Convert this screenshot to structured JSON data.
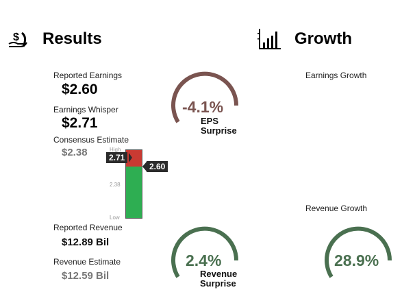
{
  "results": {
    "title": "Results",
    "icon": "money-hand-icon",
    "reported_earnings_label": "Reported Earnings",
    "reported_earnings_value": "$2.60",
    "earnings_whisper_label": "Earnings Whisper",
    "earnings_whisper_value": "$2.71",
    "consensus_label": "Consensus Estimate",
    "consensus_value": "$2.38",
    "reported_revenue_label": "Reported Revenue",
    "reported_revenue_value": "$12.89 Bil",
    "revenue_estimate_label": "Revenue Estimate",
    "revenue_estimate_value": "$12.59 Bil"
  },
  "eps_gauge": {
    "value": "-4.1%",
    "label_line1": "EPS",
    "label_line2": "Surprise",
    "color": "#7a5450"
  },
  "revenue_gauge": {
    "value": "2.4%",
    "label_line1": "Revenue",
    "label_line2": "Surprise",
    "color": "#4a7050"
  },
  "bar": {
    "high_label": "High",
    "mid_label": "2.38",
    "low_label": "Low",
    "whisper_tag": "2.71",
    "reported_tag": "2.60",
    "red_color": "#c93a32",
    "green_color": "#2eae52"
  },
  "growth": {
    "title": "Growth",
    "icon": "bar-chart-icon",
    "earnings_growth_label": "Earnings Growth",
    "revenue_growth_label": "Revenue Growth",
    "revenue_growth_value": "28.9%",
    "color": "#4a7050"
  }
}
